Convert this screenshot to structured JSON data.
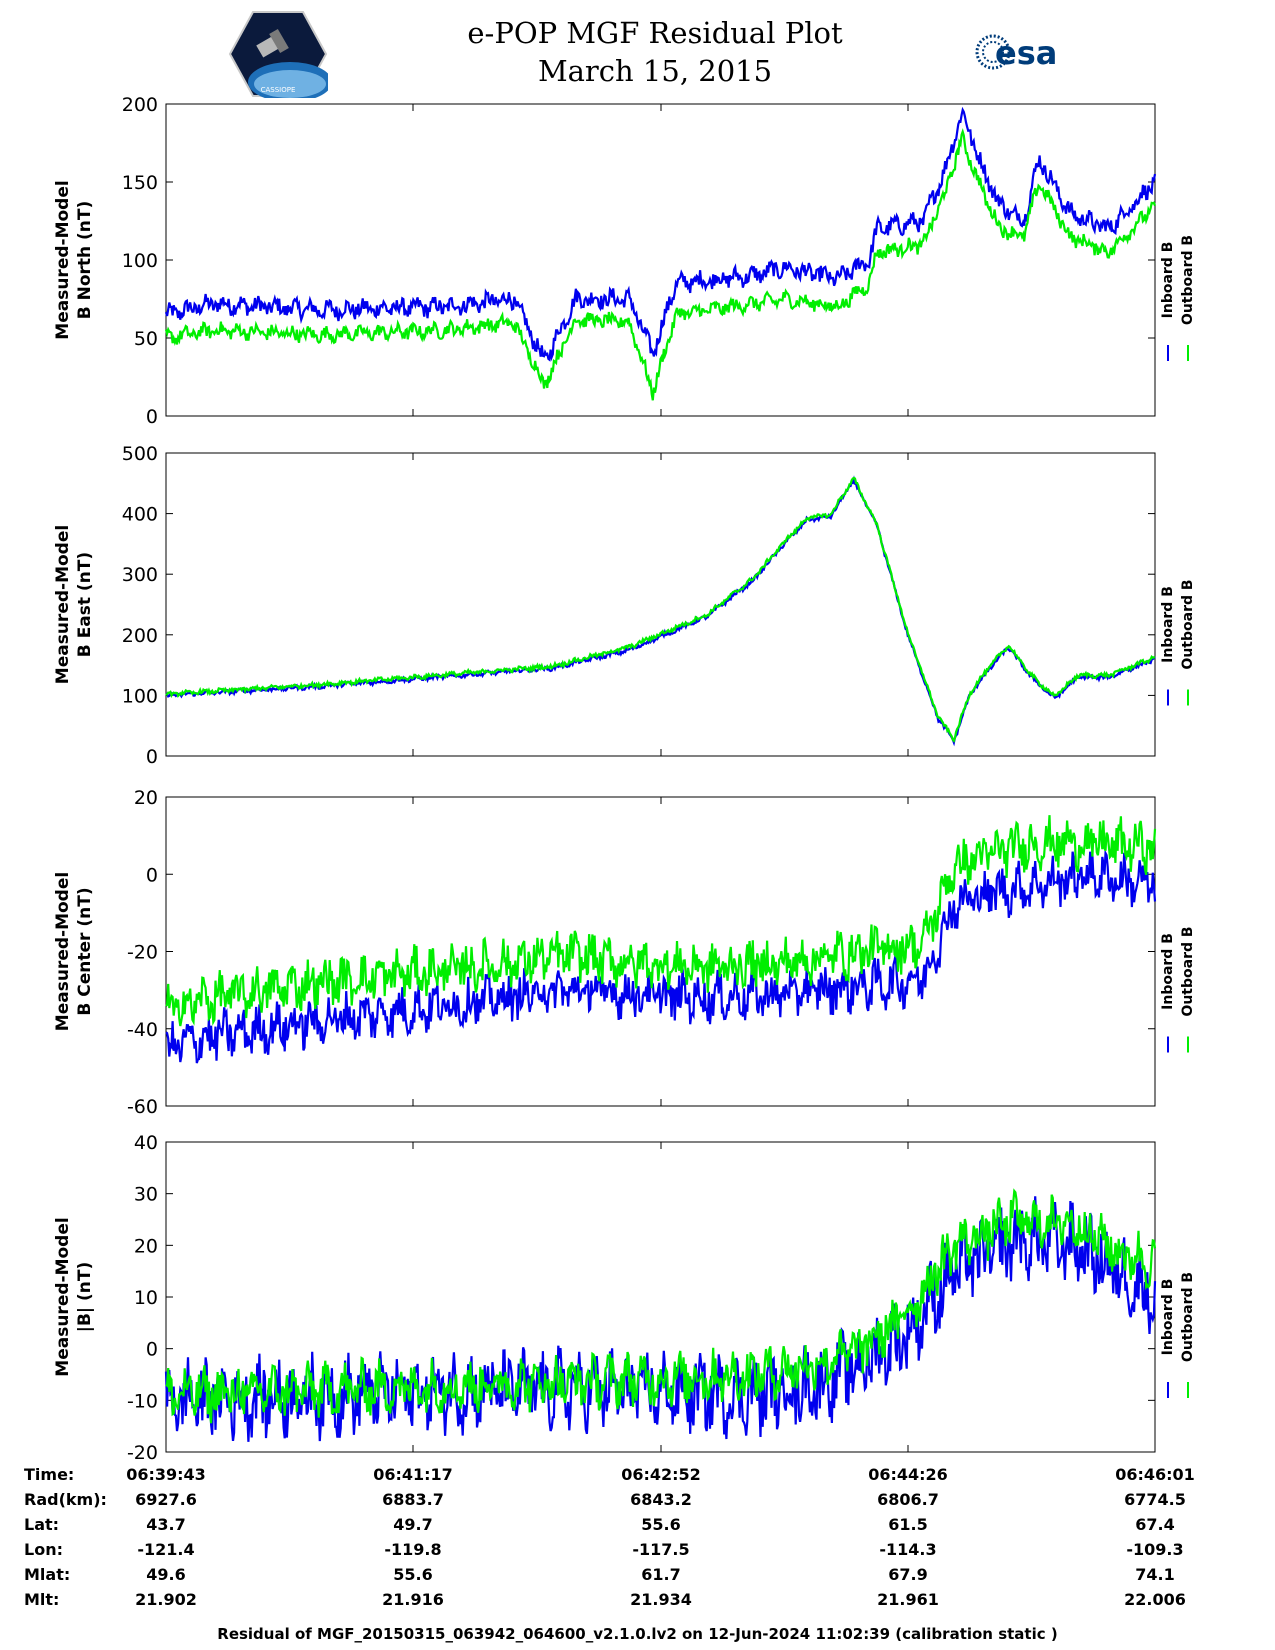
{
  "header": {
    "title": "e-POP MGF Residual Plot",
    "date": "March 15, 2015",
    "logo_left": "CASSIOPE",
    "logo_right": "esa"
  },
  "colors": {
    "inboard": "#0000ee",
    "outboard": "#00ee00"
  },
  "chart_data": [
    {
      "type": "line",
      "ylabel": [
        "Measured-Model",
        "B North (nT)"
      ],
      "ylim": [
        0,
        200
      ],
      "yticks": [
        "0",
        "50",
        "100",
        "150",
        "200"
      ],
      "legend": [
        "Inboard B",
        "Outboard B"
      ],
      "x_minutes": [
        0,
        1.35,
        3.2,
        3.6,
        4.1,
        4.65,
        5.6,
        5.9,
        6.4
      ],
      "series": [
        {
          "name": "Inboard B",
          "shape": [
            [
              0,
              65
            ],
            [
              0.3,
              72
            ],
            [
              1.0,
              68
            ],
            [
              1.8,
              70
            ],
            [
              2.25,
              75
            ],
            [
              2.45,
              35
            ],
            [
              2.65,
              75
            ],
            [
              3.0,
              75
            ],
            [
              3.15,
              40
            ],
            [
              3.3,
              85
            ],
            [
              3.8,
              90
            ],
            [
              4.0,
              95
            ],
            [
              4.35,
              88
            ],
            [
              4.55,
              100
            ],
            [
              4.6,
              120
            ],
            [
              4.9,
              125
            ],
            [
              5.05,
              160
            ],
            [
              5.15,
              195
            ],
            [
              5.3,
              155
            ],
            [
              5.4,
              135
            ],
            [
              5.55,
              125
            ],
            [
              5.65,
              165
            ],
            [
              5.85,
              130
            ],
            [
              6.1,
              120
            ],
            [
              6.3,
              140
            ],
            [
              6.4,
              150
            ]
          ],
          "noise": 5
        },
        {
          "name": "Outboard B",
          "shape": [
            [
              0,
              50
            ],
            [
              0.3,
              55
            ],
            [
              1.0,
              52
            ],
            [
              1.8,
              55
            ],
            [
              2.25,
              60
            ],
            [
              2.45,
              20
            ],
            [
              2.65,
              62
            ],
            [
              3.0,
              60
            ],
            [
              3.15,
              15
            ],
            [
              3.3,
              65
            ],
            [
              3.8,
              72
            ],
            [
              4.0,
              75
            ],
            [
              4.35,
              70
            ],
            [
              4.55,
              85
            ],
            [
              4.6,
              105
            ],
            [
              4.9,
              110
            ],
            [
              5.05,
              145
            ],
            [
              5.15,
              178
            ],
            [
              5.3,
              140
            ],
            [
              5.4,
              120
            ],
            [
              5.55,
              115
            ],
            [
              5.65,
              150
            ],
            [
              5.85,
              115
            ],
            [
              6.1,
              105
            ],
            [
              6.3,
              125
            ],
            [
              6.4,
              135
            ]
          ],
          "noise": 4
        }
      ]
    },
    {
      "type": "line",
      "ylabel": [
        "Measured-Model",
        "B East (nT)"
      ],
      "ylim": [
        0,
        500
      ],
      "yticks": [
        "0",
        "100",
        "200",
        "300",
        "400",
        "500"
      ],
      "legend": [
        "Inboard B",
        "Outboard B"
      ],
      "series": [
        {
          "name": "Inboard B",
          "shape": [
            [
              0,
              100
            ],
            [
              1.0,
              115
            ],
            [
              2.0,
              135
            ],
            [
              2.5,
              145
            ],
            [
              3.0,
              175
            ],
            [
              3.5,
              230
            ],
            [
              3.8,
              290
            ],
            [
              4.0,
              350
            ],
            [
              4.15,
              390
            ],
            [
              4.3,
              395
            ],
            [
              4.45,
              455
            ],
            [
              4.6,
              380
            ],
            [
              4.8,
              200
            ],
            [
              5.0,
              60
            ],
            [
              5.1,
              25
            ],
            [
              5.2,
              100
            ],
            [
              5.3,
              135
            ],
            [
              5.45,
              180
            ],
            [
              5.6,
              130
            ],
            [
              5.75,
              95
            ],
            [
              5.9,
              130
            ],
            [
              6.1,
              130
            ],
            [
              6.4,
              160
            ]
          ],
          "noise": 3
        },
        {
          "name": "Outboard B",
          "shape": [
            [
              0,
              102
            ],
            [
              1.0,
              118
            ],
            [
              2.0,
              138
            ],
            [
              2.5,
              148
            ],
            [
              3.0,
              180
            ],
            [
              3.5,
              233
            ],
            [
              3.8,
              293
            ],
            [
              4.0,
              353
            ],
            [
              4.15,
              393
            ],
            [
              4.3,
              398
            ],
            [
              4.45,
              458
            ],
            [
              4.6,
              382
            ],
            [
              4.8,
              203
            ],
            [
              5.0,
              63
            ],
            [
              5.1,
              28
            ],
            [
              5.2,
              103
            ],
            [
              5.3,
              138
            ],
            [
              5.45,
              183
            ],
            [
              5.6,
              133
            ],
            [
              5.75,
              98
            ],
            [
              5.9,
              133
            ],
            [
              6.1,
              133
            ],
            [
              6.4,
              163
            ]
          ],
          "noise": 3
        }
      ]
    },
    {
      "type": "line",
      "ylabel": [
        "Measured-Model",
        "B Center (nT)"
      ],
      "ylim": [
        -60,
        20
      ],
      "yticks": [
        "-60",
        "-40",
        "-20",
        "0",
        "20"
      ],
      "legend": [
        "Inboard B",
        "Outboard B"
      ],
      "series": [
        {
          "name": "Inboard B",
          "shape": [
            [
              0,
              -45
            ],
            [
              0.3,
              -42
            ],
            [
              1.0,
              -38
            ],
            [
              2.0,
              -33
            ],
            [
              2.6,
              -30
            ],
            [
              3.0,
              -31
            ],
            [
              3.5,
              -32
            ],
            [
              4.0,
              -31
            ],
            [
              4.5,
              -29
            ],
            [
              4.9,
              -27
            ],
            [
              5.1,
              -8
            ],
            [
              5.3,
              -5
            ],
            [
              5.6,
              -3
            ],
            [
              6.0,
              0
            ],
            [
              6.4,
              -3
            ]
          ],
          "noise": 5
        },
        {
          "name": "Outboard B",
          "shape": [
            [
              0,
              -35
            ],
            [
              0.3,
              -32
            ],
            [
              1.0,
              -28
            ],
            [
              2.0,
              -24
            ],
            [
              2.6,
              -21
            ],
            [
              3.0,
              -23
            ],
            [
              3.5,
              -24
            ],
            [
              4.0,
              -23
            ],
            [
              4.5,
              -20
            ],
            [
              4.9,
              -18
            ],
            [
              5.1,
              2
            ],
            [
              5.3,
              5
            ],
            [
              5.6,
              8
            ],
            [
              6.0,
              8
            ],
            [
              6.4,
              7
            ]
          ],
          "noise": 5
        }
      ]
    },
    {
      "type": "line",
      "ylabel": [
        "Measured-Model",
        "|B| (nT)"
      ],
      "ylim": [
        -20,
        40
      ],
      "yticks": [
        "-20",
        "-10",
        "0",
        "10",
        "20",
        "30",
        "40"
      ],
      "legend": [
        "Inboard B",
        "Outboard B"
      ],
      "series": [
        {
          "name": "Inboard B",
          "shape": [
            [
              0,
              -10
            ],
            [
              1.0,
              -9
            ],
            [
              2.0,
              -8
            ],
            [
              3.0,
              -8
            ],
            [
              3.8,
              -9
            ],
            [
              4.2,
              -7
            ],
            [
              4.5,
              -3
            ],
            [
              4.8,
              3
            ],
            [
              5.1,
              15
            ],
            [
              5.5,
              21
            ],
            [
              5.9,
              20
            ],
            [
              6.2,
              14
            ],
            [
              6.4,
              10
            ]
          ],
          "noise": 6
        },
        {
          "name": "Outboard B",
          "shape": [
            [
              0,
              -9
            ],
            [
              1.0,
              -8
            ],
            [
              2.0,
              -7
            ],
            [
              3.0,
              -6
            ],
            [
              3.8,
              -5
            ],
            [
              4.2,
              -3
            ],
            [
              4.5,
              0
            ],
            [
              4.8,
              7
            ],
            [
              5.1,
              20
            ],
            [
              5.5,
              25
            ],
            [
              5.9,
              24
            ],
            [
              6.2,
              18
            ],
            [
              6.4,
              17
            ]
          ],
          "noise": 4
        }
      ]
    }
  ],
  "info": {
    "labels": [
      "Time:",
      "Rad(km):",
      "Lat:",
      "Lon:",
      "Mlat:",
      "Mlt:"
    ],
    "columns": [
      [
        "06:39:43",
        "6927.6",
        "43.7",
        "-121.4",
        "49.6",
        "21.902"
      ],
      [
        "06:41:17",
        "6883.7",
        "49.7",
        "-119.8",
        "55.6",
        "21.916"
      ],
      [
        "06:42:52",
        "6843.2",
        "55.6",
        "-117.5",
        "61.7",
        "21.934"
      ],
      [
        "06:44:26",
        "6806.7",
        "61.5",
        "-114.3",
        "67.9",
        "21.961"
      ],
      [
        "06:46:01",
        "6774.5",
        "67.4",
        "-109.3",
        "74.1",
        "22.006"
      ]
    ]
  },
  "footer": "Residual of MGF_20150315_063942_064600_v2.1.0.lv2 on 12-Jun-2024 11:02:39 (calibration static )"
}
